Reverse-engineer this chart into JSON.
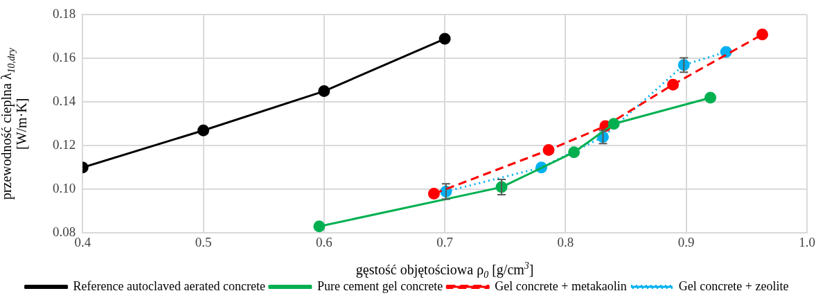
{
  "chart_data": {
    "type": "line",
    "xlabel": "gęstość objętościowa ρ$_{0}$ [g/cm$^{3}$]",
    "ylabel": "przewodność cieplna λ$_{10,dry}$ [W/m·K]",
    "xlim": [
      0.4,
      1.0
    ],
    "xticks": [
      {
        "value": 0.4,
        "label": "0.4"
      },
      {
        "value": 0.5,
        "label": "0.5"
      },
      {
        "value": 0.6,
        "label": "0.6"
      },
      {
        "value": 0.7,
        "label": "0.7"
      },
      {
        "value": 0.8,
        "label": "0.8"
      },
      {
        "value": 0.9,
        "label": "0.9"
      },
      {
        "value": 1.0,
        "label": "1.0"
      }
    ],
    "ylim": [
      0.08,
      0.18
    ],
    "yticks": [
      {
        "value": 0.08,
        "label": "0.08"
      },
      {
        "value": 0.1,
        "label": "0.10"
      },
      {
        "value": 0.12,
        "label": "0.12"
      },
      {
        "value": 0.14,
        "label": "0.14"
      },
      {
        "value": 0.16,
        "label": "0.16"
      },
      {
        "value": 0.18,
        "label": "0.18"
      }
    ],
    "grid": true,
    "legend": "bottom",
    "marker": "circle",
    "series": [
      {
        "name": "Reference autoclaved aerated concrete",
        "color": "#000000",
        "line_style": "solid",
        "x": [
          0.4,
          0.5,
          0.6,
          0.7
        ],
        "values": [
          0.11,
          0.127,
          0.145,
          0.169
        ]
      },
      {
        "name": "Pure cement gel concrete",
        "color": "#00b050",
        "line_style": "solid",
        "x": [
          0.596,
          0.747,
          0.807,
          0.84,
          0.92
        ],
        "values": [
          0.083,
          0.101,
          0.117,
          0.13,
          0.142
        ],
        "errors": [
          null,
          0.0035,
          null,
          null,
          null
        ]
      },
      {
        "name": "Gel concrete + metakaolin",
        "color": "#ff0000",
        "line_style": "dashed",
        "x": [
          0.691,
          0.786,
          0.833,
          0.889,
          0.963
        ],
        "values": [
          0.098,
          0.118,
          0.129,
          0.148,
          0.171
        ]
      },
      {
        "name": "Gel concrete + zeolite",
        "color": "#00b0f0",
        "line_style": "dotted",
        "x": [
          0.701,
          0.78,
          0.807,
          0.831,
          0.841,
          0.898,
          0.933
        ],
        "values": [
          0.099,
          0.11,
          null,
          0.124,
          null,
          0.157,
          0.163
        ],
        "errors": [
          0.0035,
          null,
          null,
          0.003,
          null,
          0.0033,
          null
        ]
      }
    ]
  }
}
